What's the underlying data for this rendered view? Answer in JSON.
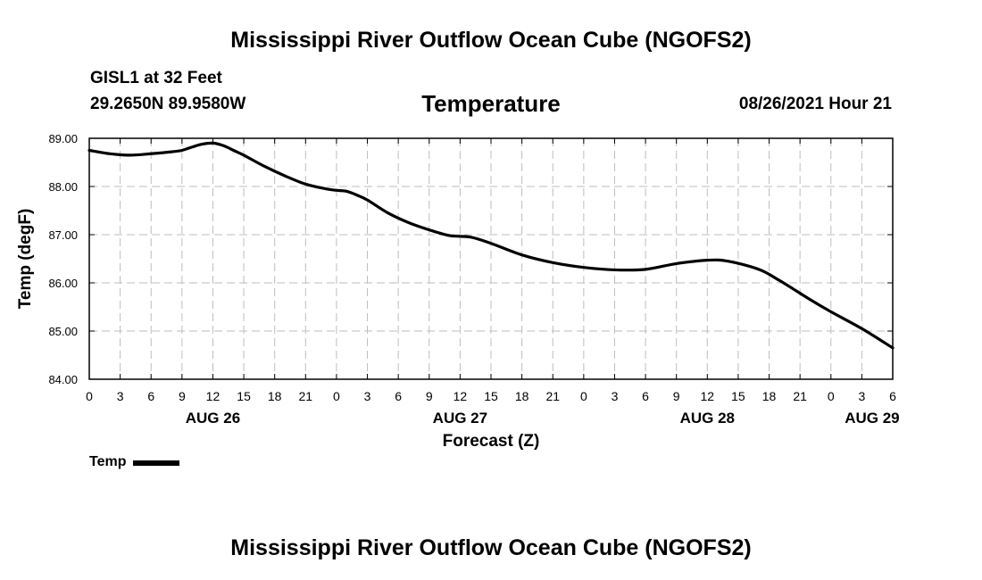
{
  "page_title": "Mississippi River Outflow Ocean Cube (NGOFS2)",
  "footer_title": "Mississippi River Outflow Ocean Cube (NGOFS2)",
  "station": {
    "name": "GISL1 at 32 Feet",
    "coordinates": "29.2650N  89.9580W"
  },
  "run_time": "08/26/2021 Hour 21",
  "legend": {
    "label": "Temp",
    "color": "#000000"
  },
  "chart_data": {
    "type": "line",
    "title": "Temperature",
    "xlabel": "Forecast (Z)",
    "ylabel": "Temp (degF)",
    "xlim": [
      0,
      78
    ],
    "ylim": [
      84.0,
      89.0
    ],
    "grid": true,
    "legend_position": "bottom-left",
    "x_ticks": [
      0,
      3,
      6,
      9,
      12,
      15,
      18,
      21,
      24,
      27,
      30,
      33,
      36,
      39,
      42,
      45,
      48,
      51,
      54,
      57,
      60,
      63,
      66,
      69,
      72,
      75,
      78
    ],
    "x_tick_labels": [
      "0",
      "3",
      "6",
      "9",
      "12",
      "15",
      "18",
      "21",
      "0",
      "3",
      "6",
      "9",
      "12",
      "15",
      "18",
      "21",
      "0",
      "3",
      "6",
      "9",
      "12",
      "15",
      "18",
      "21",
      "0",
      "3",
      "6"
    ],
    "y_ticks": [
      84,
      85,
      86,
      87,
      88,
      89
    ],
    "y_tick_labels": [
      "84.00",
      "85.00",
      "86.00",
      "87.00",
      "88.00",
      "89.00"
    ],
    "date_labels": [
      {
        "x": 12,
        "label": "AUG 26"
      },
      {
        "x": 36,
        "label": "AUG 27"
      },
      {
        "x": 60,
        "label": "AUG 28"
      },
      {
        "x": 76,
        "label": "AUG 29"
      }
    ],
    "series": [
      {
        "name": "Temp",
        "x": [
          0,
          2,
          4,
          6,
          8,
          9,
          10,
          11,
          12,
          13,
          14,
          15,
          17,
          19,
          21,
          23,
          24,
          25,
          26,
          27,
          29,
          31,
          33,
          35,
          37,
          39,
          42,
          45,
          48,
          51,
          54,
          57,
          60,
          62,
          65,
          67,
          70,
          72,
          75,
          78
        ],
        "values": [
          88.75,
          88.68,
          88.65,
          88.68,
          88.72,
          88.75,
          88.82,
          88.88,
          88.9,
          88.85,
          88.75,
          88.65,
          88.42,
          88.22,
          88.05,
          87.95,
          87.92,
          87.9,
          87.82,
          87.72,
          87.45,
          87.25,
          87.1,
          86.98,
          86.95,
          86.82,
          86.58,
          86.42,
          86.32,
          86.27,
          86.28,
          86.4,
          86.47,
          86.45,
          86.28,
          86.05,
          85.65,
          85.4,
          85.05,
          84.65
        ]
      }
    ]
  }
}
